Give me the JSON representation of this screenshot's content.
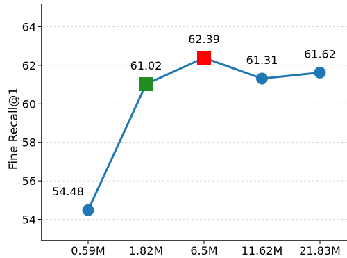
{
  "chart_data": {
    "type": "line",
    "title": "",
    "xlabel": "",
    "ylabel": "Fine Recall@1",
    "categories": [
      "0.59M",
      "1.82M",
      "6.5M",
      "11.62M",
      "21.83M"
    ],
    "series": [
      {
        "values": [
          54.48,
          61.02,
          62.39,
          61.31,
          61.62
        ],
        "data_labels": [
          "54.48",
          "61.02",
          "62.39",
          "61.31",
          "61.62"
        ],
        "color": "#1f77b4",
        "markers": [
          "circle",
          "square",
          "square",
          "circle",
          "circle"
        ],
        "marker_colors": [
          "#1f77b4",
          "#228b22",
          "#ff0000",
          "#1f77b4",
          "#1f77b4"
        ]
      }
    ],
    "yticks": [
      54,
      56,
      58,
      60,
      62,
      64
    ],
    "ytick_labels": [
      "54",
      "56",
      "58",
      "60",
      "62",
      "64"
    ],
    "ylim": [
      52.9,
      65.1
    ],
    "grid": "horizontal dashed",
    "legend": "none"
  }
}
